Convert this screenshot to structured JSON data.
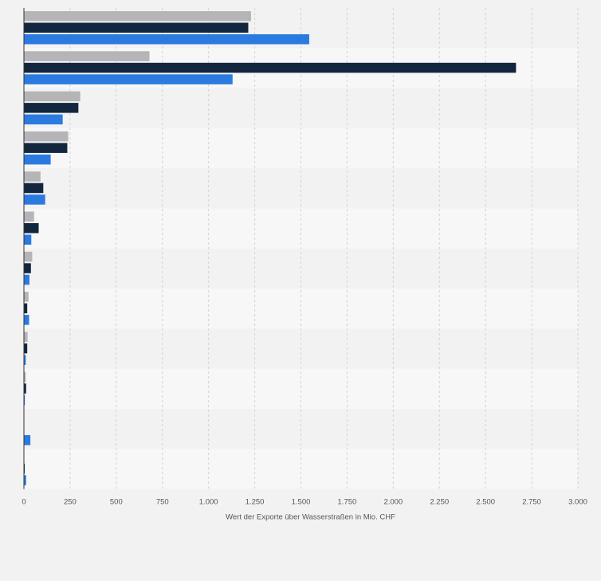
{
  "chart_data": {
    "type": "bar",
    "orientation": "horizontal",
    "xlabel": "Wert der Exporte über Wasserstraßen in Mio. CHF",
    "xlim": [
      0,
      3000
    ],
    "x_ticks": [
      0,
      250,
      500,
      750,
      1000,
      1250,
      1500,
      1750,
      2000,
      2250,
      2500,
      2750,
      3000
    ],
    "x_tick_labels": [
      "0",
      "250",
      "500",
      "750",
      "1.000",
      "1.250",
      "1.500",
      "1.750",
      "2.000",
      "2.250",
      "2.500",
      "2.750",
      "3.000"
    ],
    "grid": true,
    "legend": "none",
    "category_count": 12,
    "series": [
      {
        "color": "#b5b5b8",
        "values": [
          1230,
          680,
          305,
          240,
          90,
          55,
          45,
          25,
          20,
          10,
          0,
          0
        ]
      },
      {
        "color": "#12263f",
        "values": [
          1215,
          2665,
          295,
          235,
          105,
          80,
          38,
          18,
          18,
          12,
          0,
          4
        ]
      },
      {
        "color": "#2b7ae0",
        "values": [
          1545,
          1130,
          210,
          145,
          115,
          40,
          30,
          28,
          10,
          5,
          35,
          12
        ]
      }
    ]
  }
}
